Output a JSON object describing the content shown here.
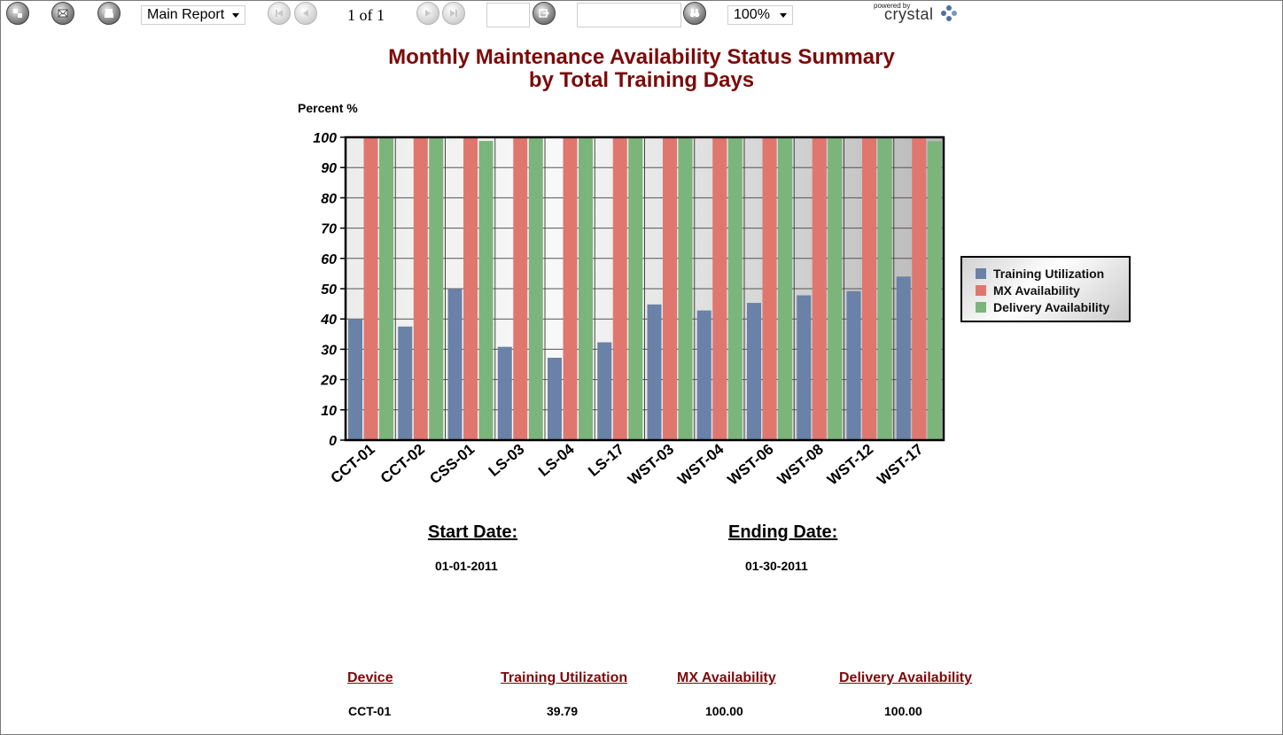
{
  "toolbar": {
    "report_select": "Main Report",
    "page_info": "1 of 1",
    "page_number_input": "",
    "search_input": "",
    "zoom_select": "100%",
    "logo_small": "powered by",
    "logo_brand": "crystal"
  },
  "report": {
    "title_line1": "Monthly Maintenance Availability Status Summary",
    "title_line2": "by Total Training Days",
    "start_date_label": "Start Date:",
    "start_date_value": "01-01-2011",
    "end_date_label": "Ending Date:",
    "end_date_value": "01-30-2011",
    "table": {
      "headers": [
        "Device ",
        "Training Utilization",
        "MX Availability",
        "Delivery Availability"
      ],
      "rows": [
        [
          "CCT-01",
          "39.79",
          "100.00",
          "100.00"
        ]
      ]
    }
  },
  "chart_data": {
    "type": "bar",
    "ylabel": "Percent %",
    "ylim": [
      0,
      100
    ],
    "yticks": [
      "0",
      "10",
      "20",
      "30",
      "40",
      "50",
      "60",
      "70",
      "80",
      "90",
      "100"
    ],
    "categories": [
      "CCT-01",
      "CCT-02",
      "CSS-01",
      "LS-03",
      "LS-04",
      "LS-17",
      "WST-03",
      "WST-04",
      "WST-06",
      "WST-08",
      "WST-12",
      "WST-17"
    ],
    "series": [
      {
        "name": "Training Utilization",
        "color": "#6a81a8",
        "values": [
          39.79,
          37.5,
          49.8,
          30.8,
          27.2,
          32.3,
          44.8,
          42.8,
          45.3,
          47.8,
          49.2,
          54
        ]
      },
      {
        "name": "MX Availability",
        "color": "#e0776f",
        "values": [
          100,
          100,
          100,
          100,
          100,
          100,
          100,
          100,
          100,
          100,
          100,
          100
        ]
      },
      {
        "name": "Delivery Availability",
        "color": "#7bb57b",
        "values": [
          100,
          100,
          98.8,
          100,
          100,
          100,
          100,
          100,
          100,
          100,
          100,
          98.7
        ]
      }
    ],
    "grid": true,
    "legend": "right"
  }
}
